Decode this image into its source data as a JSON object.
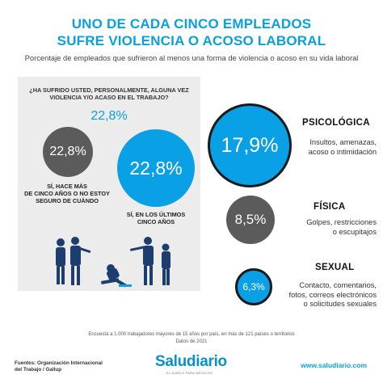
{
  "header": {
    "title_line1": "UNO DE CADA CINCO EMPLEADOS",
    "title_line2": "SUFRE VIOLENCIA O ACOSO LABORAL",
    "subtitle": "Porcentaje de empleados que sufrieron al menos una forma de violencia o acoso en su vida laboral"
  },
  "left_panel": {
    "question_line1": "¿HA SUFRIDO USTED, PERSONALMENTE, ALGUNA VEZ",
    "question_line2": "VIOLENCIA Y/O ACASO EN EL TRABAJO?",
    "total": "22,8%",
    "past": {
      "value": "22,8%",
      "caption_line1": "SÍ, HACE MÁS",
      "caption_line2": "DE CINCO AÑOS O NO ESTOY",
      "caption_line3": "SEGURO DE CUÁNDO"
    },
    "recent": {
      "value": "22,8%",
      "caption_line1": "SÍ, EN LOS ÚLTIMOS",
      "caption_line2": "CINCO AÑOS"
    }
  },
  "categories": [
    {
      "name": "PSICOLÓGICA",
      "value": "17,9%",
      "desc_line1": "Insultos, amenazas,",
      "desc_line2": "acoso o intimidación",
      "desc_line3": "",
      "desc_line4": ""
    },
    {
      "name": "FÍSICA",
      "value": "8,5%",
      "desc_line1": "Golpes, restricciones",
      "desc_line2": "o escupitajos",
      "desc_line3": "",
      "desc_line4": ""
    },
    {
      "name": "SEXUAL",
      "value": "6,3%",
      "desc_line1": "Contacto, comentarios,",
      "desc_line2": "fotos, correos electrónicos",
      "desc_line3": "o solicitudes sexuales",
      "desc_line4": ""
    }
  ],
  "footer": {
    "note_line1": "Encuesta a 1.000 trabajadores mayores de 15 años por país, en más de 121 países o territorios",
    "note_line2": "Datos de 2021",
    "sources_line1": "Fuentes: Organización Internacional",
    "sources_line2": "del Trabajo / Gallup",
    "logo": "Saludiario",
    "logo_tagline": "EL DIARIO PARA MÉDICOS",
    "url": "www.saludiario.com"
  },
  "colors": {
    "accent": "#0aa0dc",
    "dark_circle": "#5b5b5b",
    "panel_bg": "#ececec"
  },
  "chart_data": {
    "type": "bubble",
    "title": "UNO DE CADA CINCO EMPLEADOS SUFRE VIOLENCIA O ACOSO LABORAL",
    "groups": [
      {
        "label": "SÍ, HACE MÁS DE CINCO AÑOS O NO ESTOY SEGURO DE CUÁNDO",
        "value": 22.8,
        "unit": "%"
      },
      {
        "label": "SÍ, EN LOS ÚLTIMOS CINCO AÑOS",
        "value": 22.8,
        "unit": "%"
      },
      {
        "label": "PSICOLÓGICA",
        "value": 17.9,
        "unit": "%"
      },
      {
        "label": "FÍSICA",
        "value": 8.5,
        "unit": "%"
      },
      {
        "label": "SEXUAL",
        "value": 6.3,
        "unit": "%"
      }
    ],
    "total": {
      "label": "¿HA SUFRIDO USTED, PERSONALMENTE, ALGUNA VEZ VIOLENCIA Y/O ACASO EN EL TRABAJO?",
      "value": 22.8,
      "unit": "%"
    }
  }
}
